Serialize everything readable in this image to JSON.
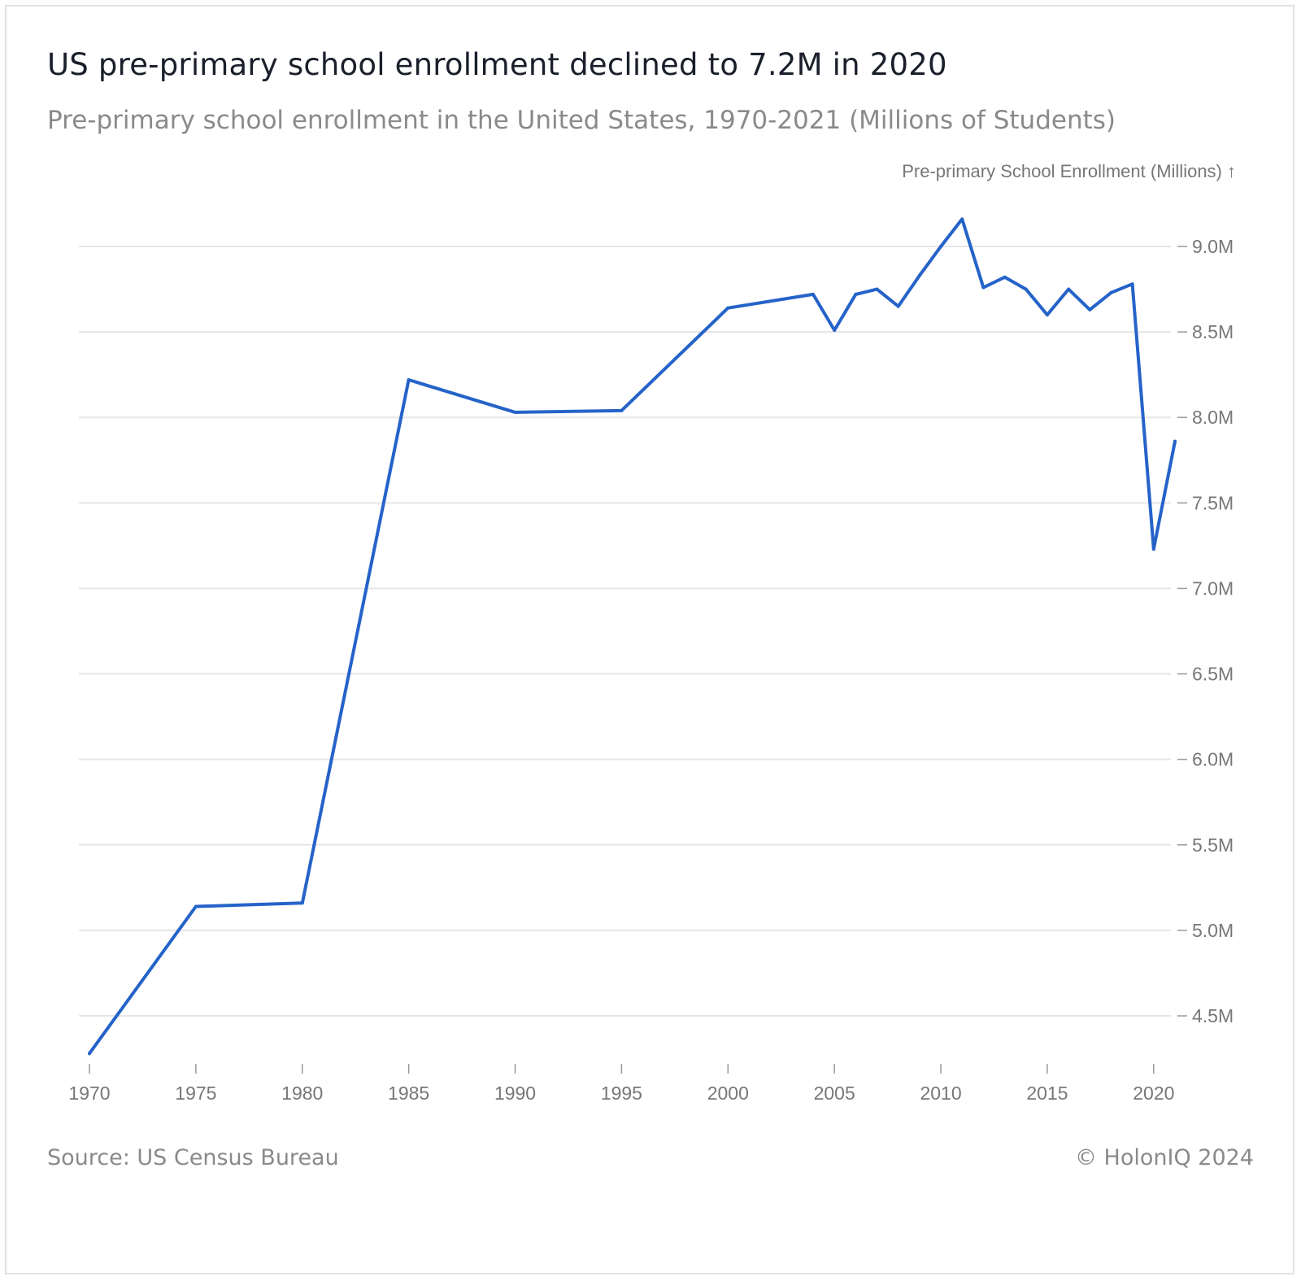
{
  "title": "US pre-primary school enrollment declined to 7.2M in 2020",
  "subtitle": "Pre-primary school enrollment in the United States, 1970-2021 (Millions of Students)",
  "source": "Source: US Census Bureau",
  "copyright": "© HolonIQ 2024",
  "colors": {
    "line": "#2563c9",
    "grid": "#e6e6e6",
    "text_muted": "#777777"
  },
  "chart_data": {
    "type": "line",
    "ylabel": "Pre-primary School Enrollment (Millions) ↑",
    "xlabel": "",
    "xlim": [
      1970,
      2021
    ],
    "ylim": [
      4.25,
      9.25
    ],
    "grid": true,
    "y_axis_side": "right",
    "x_ticks": [
      1970,
      1975,
      1980,
      1985,
      1990,
      1995,
      2000,
      2005,
      2010,
      2015,
      2020
    ],
    "x_tick_labels": [
      "1970",
      "1975",
      "1980",
      "1985",
      "1990",
      "1995",
      "2000",
      "2005",
      "2010",
      "2015",
      "2020"
    ],
    "y_ticks": [
      4.5,
      5.0,
      5.5,
      6.0,
      6.5,
      7.0,
      7.5,
      8.0,
      8.5,
      9.0
    ],
    "y_tick_labels": [
      "4.5M",
      "5.0M",
      "5.5M",
      "6.0M",
      "6.5M",
      "7.0M",
      "7.5M",
      "8.0M",
      "8.5M",
      "9.0M"
    ],
    "series": [
      {
        "x": [
          1970,
          1975,
          1980,
          1985,
          1990,
          1995,
          2000,
          2004,
          2005,
          2006,
          2007,
          2008,
          2009,
          2010,
          2011,
          2012,
          2013,
          2014,
          2015,
          2016,
          2017,
          2018,
          2019,
          2020,
          2021
        ],
        "values": [
          4.28,
          5.14,
          5.16,
          8.22,
          8.03,
          8.04,
          8.64,
          8.72,
          8.51,
          8.72,
          8.75,
          8.65,
          8.83,
          9.0,
          9.16,
          8.76,
          8.82,
          8.75,
          8.6,
          8.75,
          8.63,
          8.73,
          8.78,
          7.23,
          7.86
        ]
      }
    ]
  }
}
